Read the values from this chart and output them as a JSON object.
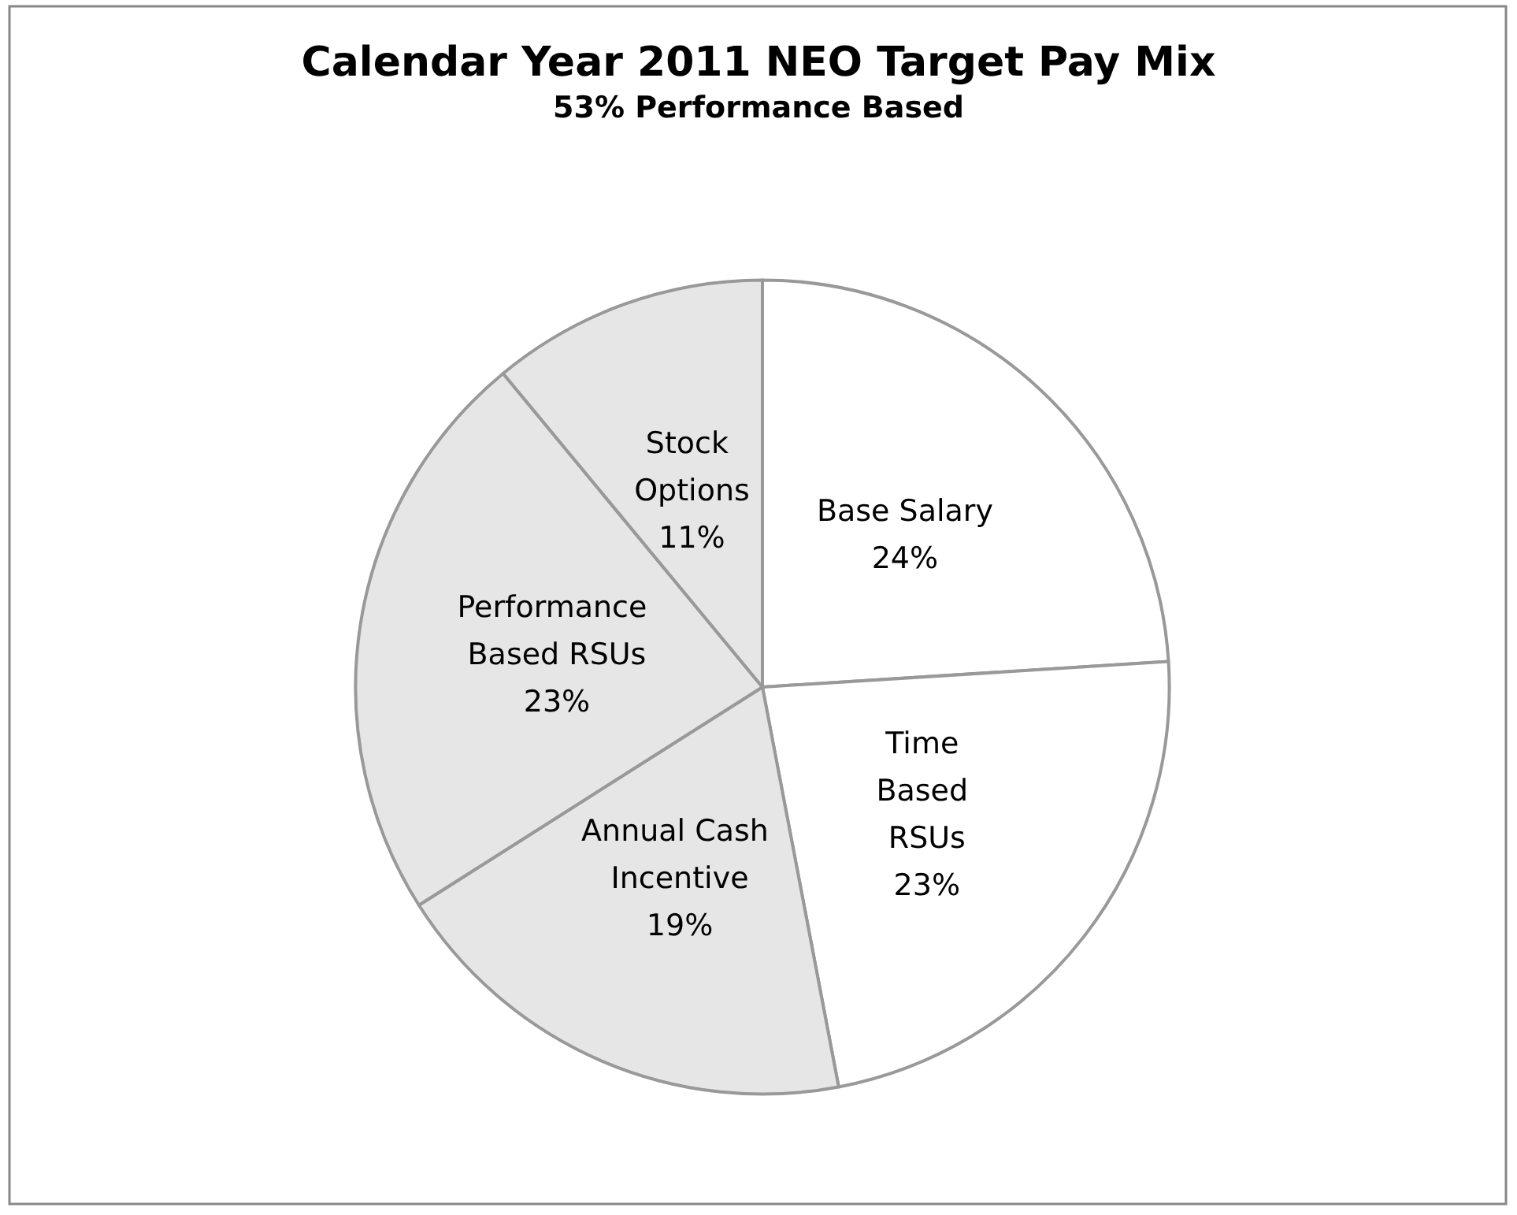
{
  "chart_data": {
    "type": "pie",
    "title": "Calendar Year 2011 NEO Target Pay Mix",
    "subtitle": "53% Performance Based",
    "categories": [
      "Base Salary",
      "Time Based RSUs",
      "Annual Cash Incentive",
      "Performance Based RSUs",
      "Stock Options"
    ],
    "values": [
      24,
      23,
      19,
      23,
      11
    ],
    "value_labels": [
      "24%",
      "23%",
      "19%",
      "23%",
      "11%"
    ],
    "colors": [
      "#ffffff",
      "#ffffff",
      "#e6e6e6",
      "#e6e6e6",
      "#e6e6e6"
    ],
    "legend": false
  }
}
